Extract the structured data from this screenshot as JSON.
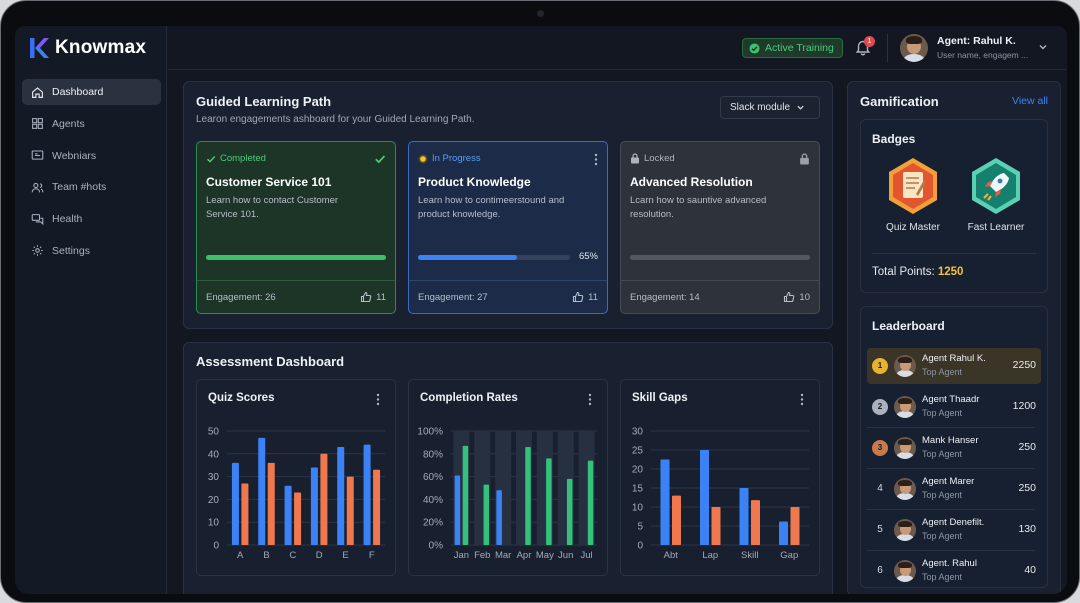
{
  "app": {
    "name": "Knowmax"
  },
  "sidebar": {
    "items": [
      {
        "label": "Dashboard",
        "icon": "home-icon"
      },
      {
        "label": "Agents",
        "icon": "grid-icon"
      },
      {
        "label": "Webniars",
        "icon": "monitor-icon"
      },
      {
        "label": "Team #hots",
        "icon": "users-icon"
      },
      {
        "label": "Health",
        "icon": "chat-icon"
      },
      {
        "label": "Settings",
        "icon": "gear-icon"
      }
    ]
  },
  "topbar": {
    "training_status": "Active Training",
    "notifications_count": "1",
    "user_name": "Agent: Rahul K.",
    "user_sub": "User name, engagem ..."
  },
  "learning": {
    "title": "Guided Learning Path",
    "subtitle": "Learon engagements ashboard for your Guided Learning Path.",
    "select_label": "Slack module",
    "cards": [
      {
        "status": "Completed",
        "title": "Customer Service 101",
        "desc": "Learn how to contact Customer Service 101.",
        "progress": 1.0,
        "engagement": "Engagement: 26",
        "likes": "11"
      },
      {
        "status": "In Progress",
        "title": "Product Knowledge",
        "desc": "Learn how to contimeerstound and product knowledge.",
        "progress": 0.65,
        "progress_label": "65%",
        "engagement": "Engagement: 27",
        "likes": "11"
      },
      {
        "status": "Locked",
        "title": "Advanced Resolution",
        "desc": "Lcarn how to sauntive advanced resolution.",
        "progress": 0,
        "engagement": "Engagement: 14",
        "likes": "10"
      }
    ]
  },
  "assessment": {
    "title": "Assessment Dashboard",
    "charts_titles": [
      "Quiz Scores",
      "Completion Rates",
      "Skill Gaps"
    ]
  },
  "chart_data": [
    {
      "type": "bar",
      "title": "Quiz Scores",
      "categories": [
        "A",
        "B",
        "C",
        "D",
        "E",
        "F"
      ],
      "series": [
        {
          "values": [
            36,
            47,
            26,
            34,
            43,
            44
          ],
          "color": "#3b82f6"
        },
        {
          "values": [
            27,
            36,
            23,
            40,
            30,
            33
          ],
          "color": "#f0784f"
        }
      ],
      "ylim": [
        0,
        50
      ],
      "yticks": [
        "0",
        "10",
        "20",
        "30",
        "40",
        "50"
      ],
      "grid": true
    },
    {
      "type": "bar",
      "title": "Completion Rates",
      "categories": [
        "Jan",
        "Feb",
        "Mar",
        "Apr",
        "May",
        "Jun",
        "Jul"
      ],
      "series": [
        {
          "values": [
            61,
            0,
            48,
            0,
            0,
            0,
            0
          ],
          "color": "#3b82f6"
        },
        {
          "values": [
            87,
            53,
            0,
            86,
            76,
            58,
            74
          ],
          "color": "#34c17b"
        }
      ],
      "ylim": [
        0,
        100
      ],
      "yticks": [
        "0%",
        "20%",
        "40%",
        "60%",
        "80%",
        "100%"
      ],
      "grid": true
    },
    {
      "type": "bar",
      "title": "Skill Gaps",
      "categories": [
        "Abt",
        "Lap",
        "Skill",
        "Gap"
      ],
      "series": [
        {
          "values": [
            22.5,
            25,
            15,
            6.2
          ],
          "color": "#3b82f6"
        },
        {
          "values": [
            13,
            10,
            11.8,
            10
          ],
          "color": "#f0784f"
        }
      ],
      "ylim": [
        0,
        30
      ],
      "yticks": [
        "0",
        "5",
        "10",
        "15",
        "20",
        "25",
        "30"
      ],
      "grid": true
    }
  ],
  "gamification": {
    "title": "Gamification",
    "view_all": "View all",
    "badges_title": "Badges",
    "badges": [
      {
        "label": "Quiz Master",
        "icon": "scroll-icon",
        "color": "#e8683d"
      },
      {
        "label": "Fast Learner",
        "icon": "rocket-icon",
        "color": "#1aa38b"
      }
    ],
    "total_points_label": "Total Points:",
    "total_points_value": "1250"
  },
  "leaderboard": {
    "title": "Leaderboard",
    "rows": [
      {
        "rank": "1",
        "name": "Agent Rahul K.",
        "role": "Top Agent",
        "score": "2250"
      },
      {
        "rank": "2",
        "name": "Agent Thaadr",
        "role": "Top Agent",
        "score": "1200"
      },
      {
        "rank": "3",
        "name": "Mank Hanser",
        "role": "Top Agent",
        "score": "250"
      },
      {
        "rank": "4",
        "name": "Agent Marer",
        "role": "Top Agent",
        "score": "250"
      },
      {
        "rank": "5",
        "name": "Agent Denefilt.",
        "role": "Top Agent",
        "score": "130"
      },
      {
        "rank": "6",
        "name": "Agent. Rahul",
        "role": "Top Agent",
        "score": "40"
      }
    ]
  }
}
